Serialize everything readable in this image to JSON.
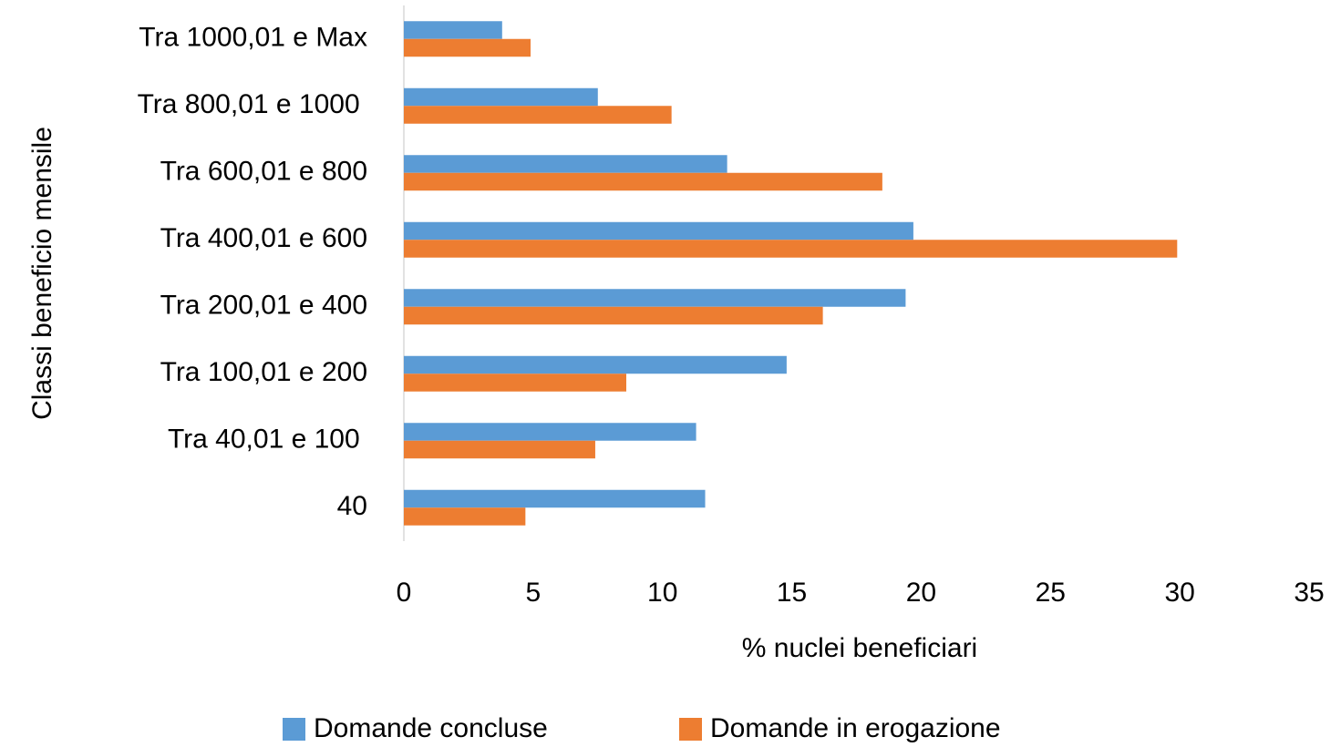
{
  "chart_data": {
    "type": "hbar",
    "xlabel": "% nuclei beneficiari",
    "ylabel": "Classi beneficio mensile",
    "categories": [
      "40",
      "Tra 40,01 e 100 ",
      "Tra 100,01 e 200",
      "Tra 200,01 e 400",
      "Tra 400,01 e 600",
      "Tra 600,01 e 800",
      "Tra 800,01 e 1000 ",
      "Tra 1000,01 e Max"
    ],
    "series": [
      {
        "name": "Domande concluse",
        "color": "#5b9bd5",
        "values": [
          11.65,
          11.3,
          14.8,
          19.4,
          19.7,
          12.5,
          7.5,
          3.8
        ]
      },
      {
        "name": "Domande in erogazione",
        "color": "#ed7d31",
        "values": [
          4.7,
          7.4,
          8.6,
          16.2,
          29.9,
          18.5,
          10.35,
          4.9
        ]
      }
    ],
    "xlim": [
      0,
      35
    ],
    "xticks": [
      0,
      5,
      10,
      15,
      20,
      25,
      30,
      35
    ],
    "grid": false,
    "legend": "bottom"
  }
}
